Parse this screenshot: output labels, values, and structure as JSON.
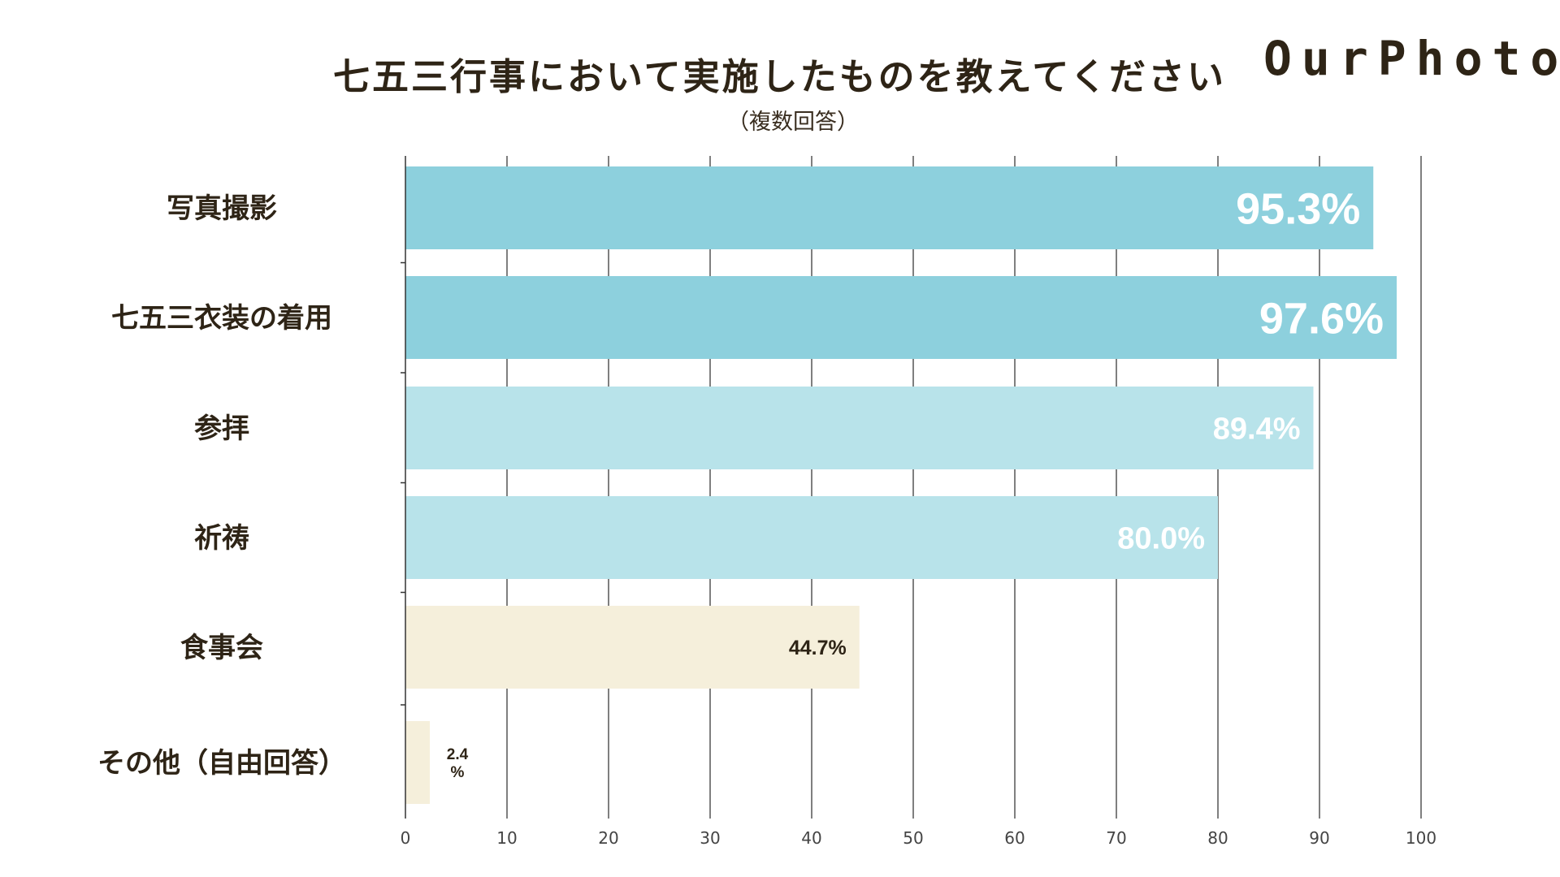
{
  "chart_data": {
    "type": "bar",
    "orientation": "horizontal",
    "title": "七五三行事において実施したものを教えてください",
    "subtitle": "（複数回答）",
    "categories": [
      "写真撮影",
      "七五三衣装の着用",
      "参拝",
      "祈祷",
      "食事会",
      "その他（自由回答）"
    ],
    "values": [
      95.3,
      97.6,
      89.4,
      80.0,
      44.7,
      2.4
    ],
    "value_labels": [
      "95.3%",
      "97.6%",
      "89.4%",
      "80.0%",
      "44.7%",
      "2.4%"
    ],
    "value_label_lines": [
      [
        "95.3%"
      ],
      [
        "97.6%"
      ],
      [
        "89.4%"
      ],
      [
        "80.0%"
      ],
      [
        "44.7%"
      ],
      [
        "2.4",
        "%"
      ]
    ],
    "bar_colors": [
      "#8dd0dd",
      "#8dd0dd",
      "#b8e3ea",
      "#b8e3ea",
      "#f5efdb",
      "#f5efdb"
    ],
    "label_colors": [
      "#ffffff",
      "#ffffff",
      "#ffffff",
      "#ffffff",
      "#2e2416",
      "#2e2416"
    ],
    "label_emphasis": [
      "large",
      "large",
      "medium",
      "medium",
      "small",
      "tiny"
    ],
    "xlim": [
      0,
      100
    ],
    "xticks": [
      0,
      10,
      20,
      30,
      40,
      50,
      60,
      70,
      80,
      90,
      100
    ],
    "xlabel": "",
    "ylabel": "",
    "grid": "vertical"
  },
  "brand": {
    "logo_text": "OurPhoto"
  },
  "colors": {
    "text": "#2e2416",
    "grid": "#555555",
    "axis": "#333333"
  }
}
